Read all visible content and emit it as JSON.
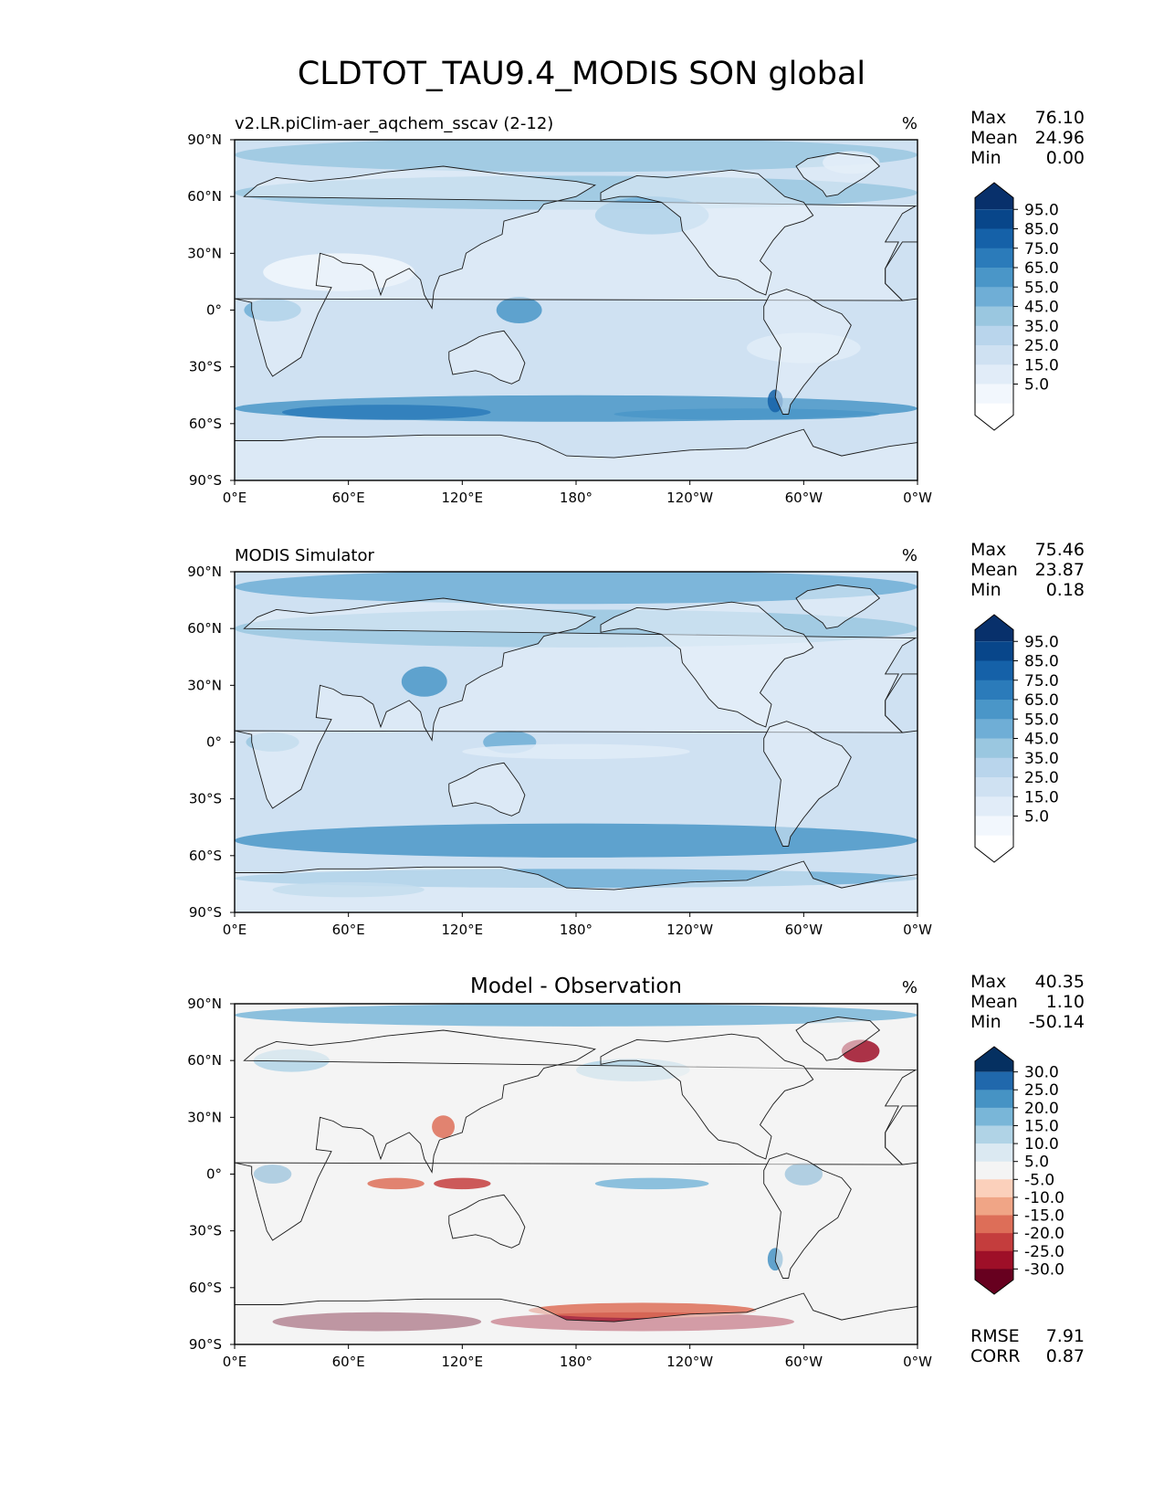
{
  "figure": {
    "title": "CLDTOT_TAU9.4_MODIS SON global"
  },
  "axes": {
    "y_ticks": [
      "90°N",
      "60°N",
      "30°N",
      "0°",
      "30°S",
      "60°S",
      "90°S"
    ],
    "x_ticks": [
      "0°E",
      "60°E",
      "120°E",
      "180°",
      "120°W",
      "60°W",
      "0°W"
    ]
  },
  "colors": {
    "blues_scale": [
      "#ffffff",
      "#f2f7fd",
      "#e1ecf8",
      "#cfe1f2",
      "#b9d5ec",
      "#9ac7e0",
      "#6faed6",
      "#4a96c8",
      "#2b7bba",
      "#1561a8",
      "#08468a",
      "#08306b"
    ],
    "diverging_scale": [
      "#67001f",
      "#9e0f28",
      "#c43d3d",
      "#dd6e58",
      "#f0a586",
      "#fbd0bb",
      "#f4f4f4",
      "#dbe9f2",
      "#b0d3e6",
      "#79b6d8",
      "#4693c4",
      "#2068ac",
      "#053061"
    ],
    "coastline": "#1a1a1a"
  },
  "panels": [
    {
      "title": "v2.LR.piClim-aer_aqchem_sscav (2-12)",
      "units": "%",
      "stats": [
        {
          "label": "Max",
          "value": "76.10"
        },
        {
          "label": "Mean",
          "value": "24.96"
        },
        {
          "label": "Min",
          "value": "0.00"
        }
      ],
      "colorbar": {
        "scale": "blues",
        "labels": [
          "95.0",
          "85.0",
          "75.0",
          "65.0",
          "55.0",
          "45.0",
          "35.0",
          "25.0",
          "15.0",
          "5.0"
        ]
      },
      "variant": "model"
    },
    {
      "title": "MODIS Simulator",
      "units": "%",
      "stats": [
        {
          "label": "Max",
          "value": "75.46"
        },
        {
          "label": "Mean",
          "value": "23.87"
        },
        {
          "label": "Min",
          "value": "0.18"
        }
      ],
      "colorbar": {
        "scale": "blues",
        "labels": [
          "95.0",
          "85.0",
          "75.0",
          "65.0",
          "55.0",
          "45.0",
          "35.0",
          "25.0",
          "15.0",
          "5.0"
        ]
      },
      "variant": "obs"
    },
    {
      "title": "Model - Observation",
      "units": "%",
      "stats": [
        {
          "label": "Max",
          "value": "40.35"
        },
        {
          "label": "Mean",
          "value": "1.10"
        },
        {
          "label": "Min",
          "value": "-50.14"
        }
      ],
      "colorbar": {
        "scale": "diverging",
        "labels": [
          "30.0",
          "25.0",
          "20.0",
          "15.0",
          "10.0",
          "5.0",
          "-5.0",
          "-10.0",
          "-15.0",
          "-20.0",
          "-25.0",
          "-30.0"
        ]
      },
      "extra_stats": [
        {
          "label": "RMSE",
          "value": "7.91"
        },
        {
          "label": "CORR",
          "value": "0.87"
        }
      ],
      "variant": "diff"
    }
  ]
}
